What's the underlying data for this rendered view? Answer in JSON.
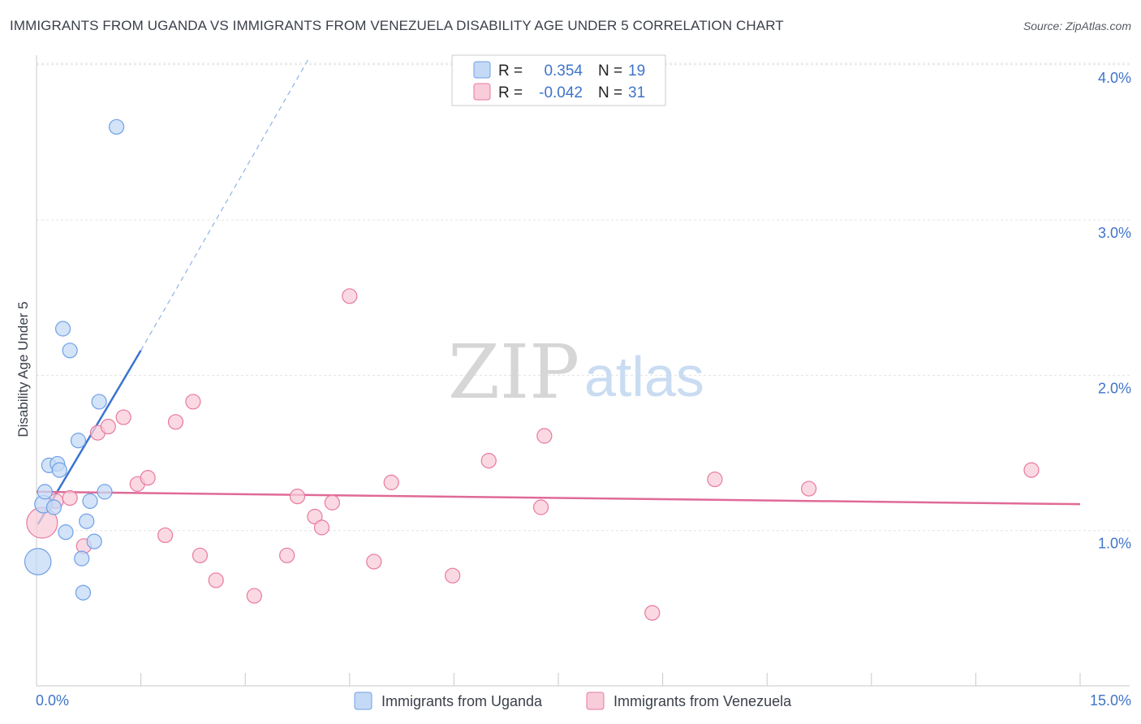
{
  "header": {
    "title": "IMMIGRANTS FROM UGANDA VS IMMIGRANTS FROM VENEZUELA DISABILITY AGE UNDER 5 CORRELATION CHART",
    "source": "Source: ZipAtlas.com"
  },
  "watermark": {
    "zip": "ZIP",
    "atlas": "atlas"
  },
  "chart_data": {
    "type": "scatter",
    "title": "IMMIGRANTS FROM UGANDA VS IMMIGRANTS FROM VENEZUELA DISABILITY AGE UNDER 5 CORRELATION CHART",
    "xlabel": "",
    "ylabel": "Disability Age Under 5",
    "xlim": [
      0,
      15
    ],
    "ylim": [
      0,
      4.1
    ],
    "x_tick_labels": {
      "min": "0.0%",
      "max": "15.0%"
    },
    "y_ticks": [
      {
        "value": 1.0,
        "label": "1.0%"
      },
      {
        "value": 2.0,
        "label": "2.0%"
      },
      {
        "value": 3.0,
        "label": "3.0%"
      },
      {
        "value": 4.0,
        "label": "4.0%"
      }
    ],
    "legend": [
      {
        "name": "Immigrants from Uganda",
        "r_label": "R =",
        "r": "0.354",
        "n_label": "N =",
        "n": "19"
      },
      {
        "name": "Immigrants from Venezuela",
        "r_label": "R =",
        "r": "-0.042",
        "n_label": "N =",
        "n": "31"
      }
    ],
    "series": [
      {
        "name": "Immigrants from Uganda",
        "color": "#6fa0e6",
        "fill": "#c4d9f5",
        "trend": {
          "x": [
            0.02,
            1.5
          ],
          "y": [
            1.04,
            2.16
          ],
          "dash_to": [
            3.9,
            4.03
          ]
        },
        "points": [
          {
            "x": 0.02,
            "y": 0.8,
            "s": 1.8
          },
          {
            "x": 0.1,
            "y": 1.17,
            "s": 1.2
          },
          {
            "x": 0.12,
            "y": 1.25,
            "s": 1
          },
          {
            "x": 0.18,
            "y": 1.42,
            "s": 1
          },
          {
            "x": 0.25,
            "y": 1.15,
            "s": 1
          },
          {
            "x": 0.3,
            "y": 1.43,
            "s": 1
          },
          {
            "x": 0.33,
            "y": 1.39,
            "s": 1
          },
          {
            "x": 0.38,
            "y": 2.3,
            "s": 1
          },
          {
            "x": 0.42,
            "y": 0.99,
            "s": 1
          },
          {
            "x": 0.48,
            "y": 2.16,
            "s": 1
          },
          {
            "x": 0.6,
            "y": 1.58,
            "s": 1
          },
          {
            "x": 0.65,
            "y": 0.82,
            "s": 1
          },
          {
            "x": 0.67,
            "y": 0.6,
            "s": 1
          },
          {
            "x": 0.72,
            "y": 1.06,
            "s": 1
          },
          {
            "x": 0.77,
            "y": 1.19,
            "s": 1
          },
          {
            "x": 0.83,
            "y": 0.93,
            "s": 1
          },
          {
            "x": 0.9,
            "y": 1.83,
            "s": 1
          },
          {
            "x": 0.98,
            "y": 1.25,
            "s": 1
          },
          {
            "x": 1.15,
            "y": 3.6,
            "s": 1
          }
        ]
      },
      {
        "name": "Immigrants from Venezuela",
        "color": "#e8799e",
        "fill": "#f8ccd9",
        "trend": {
          "x": [
            0.0,
            15.0
          ],
          "y": [
            1.25,
            1.17
          ]
        },
        "points": [
          {
            "x": 0.08,
            "y": 1.05,
            "s": 2.1
          },
          {
            "x": 0.28,
            "y": 1.19,
            "s": 1
          },
          {
            "x": 0.48,
            "y": 1.21,
            "s": 1
          },
          {
            "x": 0.68,
            "y": 0.9,
            "s": 1
          },
          {
            "x": 0.88,
            "y": 1.63,
            "s": 1
          },
          {
            "x": 1.03,
            "y": 1.67,
            "s": 1
          },
          {
            "x": 1.25,
            "y": 1.73,
            "s": 1
          },
          {
            "x": 1.45,
            "y": 1.3,
            "s": 1
          },
          {
            "x": 1.6,
            "y": 1.34,
            "s": 1
          },
          {
            "x": 1.85,
            "y": 0.97,
            "s": 1
          },
          {
            "x": 2.0,
            "y": 1.7,
            "s": 1
          },
          {
            "x": 2.25,
            "y": 1.83,
            "s": 1
          },
          {
            "x": 2.35,
            "y": 0.84,
            "s": 1
          },
          {
            "x": 2.58,
            "y": 0.68,
            "s": 1
          },
          {
            "x": 3.13,
            "y": 0.58,
            "s": 1
          },
          {
            "x": 3.6,
            "y": 0.84,
            "s": 1
          },
          {
            "x": 3.75,
            "y": 1.22,
            "s": 1
          },
          {
            "x": 4.0,
            "y": 1.09,
            "s": 1
          },
          {
            "x": 4.1,
            "y": 1.02,
            "s": 1
          },
          {
            "x": 4.25,
            "y": 1.18,
            "s": 1
          },
          {
            "x": 4.5,
            "y": 2.51,
            "s": 1
          },
          {
            "x": 4.85,
            "y": 0.8,
            "s": 1
          },
          {
            "x": 5.1,
            "y": 1.31,
            "s": 1
          },
          {
            "x": 5.98,
            "y": 0.71,
            "s": 1
          },
          {
            "x": 6.5,
            "y": 1.45,
            "s": 1
          },
          {
            "x": 7.25,
            "y": 1.15,
            "s": 1
          },
          {
            "x": 7.3,
            "y": 1.61,
            "s": 1
          },
          {
            "x": 8.85,
            "y": 0.47,
            "s": 1
          },
          {
            "x": 9.75,
            "y": 1.33,
            "s": 1
          },
          {
            "x": 11.1,
            "y": 1.27,
            "s": 1
          },
          {
            "x": 14.3,
            "y": 1.39,
            "s": 1
          }
        ]
      }
    ]
  }
}
